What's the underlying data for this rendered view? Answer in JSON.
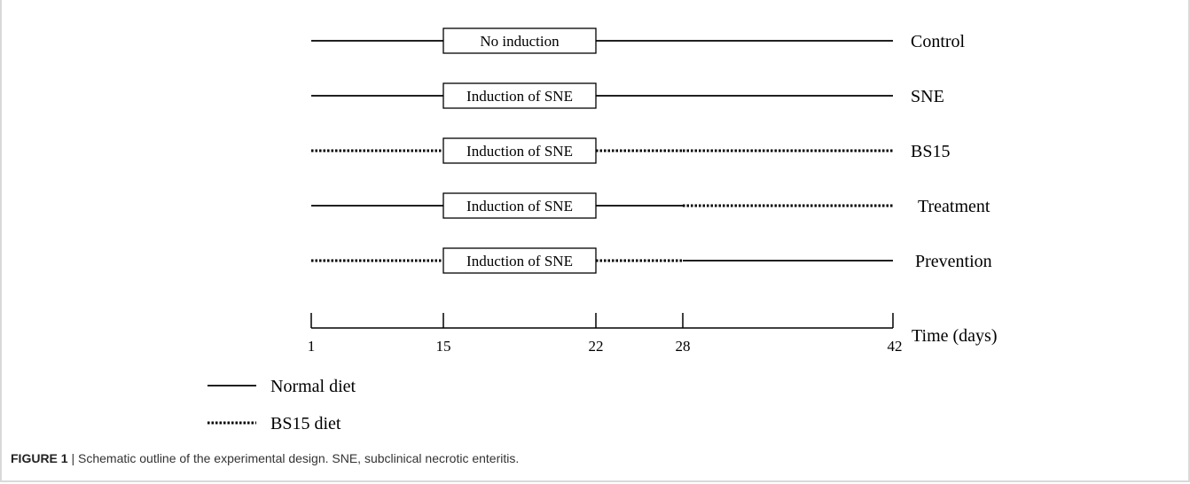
{
  "groups": [
    {
      "name": "Control",
      "box_label": "No induction",
      "segments": [
        "normal",
        "normal",
        "normal",
        "normal"
      ]
    },
    {
      "name": "SNE",
      "box_label": "Induction of SNE",
      "segments": [
        "normal",
        "normal",
        "normal",
        "normal"
      ]
    },
    {
      "name": "BS15",
      "box_label": "Induction of SNE",
      "segments": [
        "bs15",
        "bs15",
        "bs15",
        "bs15"
      ]
    },
    {
      "name": "Treatment",
      "box_label": "Induction of SNE",
      "segments": [
        "normal",
        "normal",
        "normal",
        "bs15"
      ]
    },
    {
      "name": "Prevention",
      "box_label": "Induction of SNE",
      "segments": [
        "bs15",
        "bs15",
        "bs15",
        "normal"
      ]
    }
  ],
  "timeline": {
    "days": [
      1,
      15,
      22,
      28,
      42
    ],
    "ticks": [
      "1",
      "15",
      "22",
      "28",
      "42"
    ],
    "label": "Time (days)",
    "induction_days": [
      15,
      22
    ]
  },
  "legend": [
    {
      "style": "normal",
      "label": "Normal diet"
    },
    {
      "style": "bs15",
      "label": "BS15 diet"
    }
  ],
  "caption": {
    "figure": "FIGURE 1",
    "separator": " | ",
    "text": "Schematic outline of the experimental design. SNE, subclinical necrotic enteritis."
  }
}
